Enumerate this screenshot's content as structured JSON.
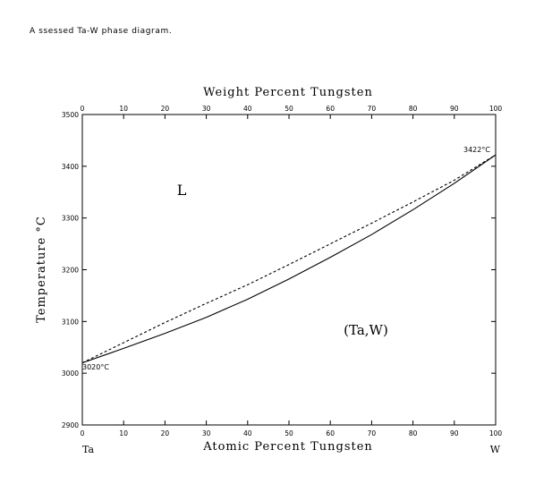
{
  "caption": "A ssessed Ta-W phase diagram.",
  "chart_data": {
    "type": "line",
    "title": "",
    "xlabel": "Atomic Percent Tungsten",
    "x2label": "Weight Percent Tungsten",
    "ylabel": "Temperature °C",
    "xlim": [
      0,
      100
    ],
    "ylim": [
      2900,
      3500
    ],
    "x_ticks": [
      "0",
      "10",
      "20",
      "30",
      "40",
      "50",
      "60",
      "70",
      "80",
      "90",
      "100"
    ],
    "x2_ticks": [
      "0",
      "10",
      "20",
      "30",
      "40",
      "50",
      "60",
      "70",
      "80",
      "90",
      "100"
    ],
    "y_ticks": [
      "2900",
      "3000",
      "3100",
      "3200",
      "3300",
      "3400",
      "3500"
    ],
    "left_end_label": "Ta",
    "right_end_label": "W",
    "series": [
      {
        "style": "dashed",
        "x": [
          0,
          10,
          20,
          30,
          40,
          50,
          60,
          70,
          80,
          90,
          100
        ],
        "y": [
          3020,
          3059,
          3098,
          3135,
          3171,
          3210,
          3250,
          3290,
          3331,
          3373,
          3422
        ]
      },
      {
        "style": "solid",
        "x": [
          0,
          10,
          20,
          30,
          40,
          50,
          60,
          70,
          80,
          90,
          100
        ],
        "y": [
          3020,
          3048,
          3077,
          3108,
          3143,
          3182,
          3224,
          3268,
          3316,
          3367,
          3422
        ]
      }
    ],
    "annotations": [
      {
        "text": "3422°C",
        "x": 100,
        "y": 3422
      },
      {
        "text": "3020°C",
        "x": 0,
        "y": 3020
      }
    ],
    "phase_labels": [
      {
        "text": "L",
        "x": 24,
        "y": 3380
      },
      {
        "text": "(Ta,W)",
        "x": 68,
        "y": 3080
      }
    ],
    "grid": false
  }
}
